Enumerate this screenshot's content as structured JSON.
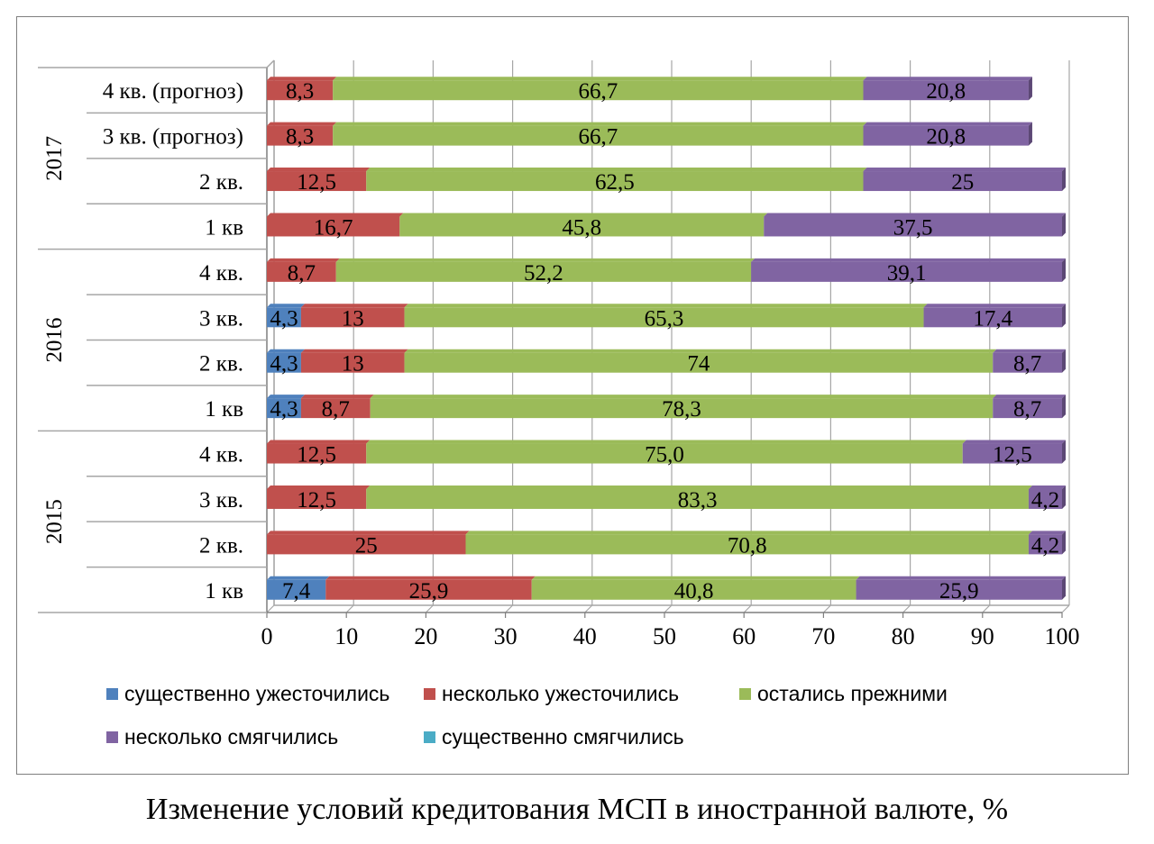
{
  "caption": "Изменение условий кредитования МСП в иностранной валюте, %",
  "colors": {
    "tightened_much": "#4f81bd",
    "tightened_some": "#c0504d",
    "unchanged": "#9bbb59",
    "eased_some": "#8064a2",
    "eased_much": "#4bacc6"
  },
  "chart_data": {
    "type": "bar",
    "orientation": "horizontal",
    "stacked": true,
    "xlim": [
      0,
      100
    ],
    "xticks": [
      0,
      10,
      20,
      30,
      40,
      50,
      60,
      70,
      80,
      90,
      100
    ],
    "grid": true,
    "legend_position": "bottom",
    "groups": [
      {
        "name": "2015",
        "categories": [
          "1 кв",
          "2 кв.",
          "3 кв.",
          "4 кв."
        ]
      },
      {
        "name": "2016",
        "categories": [
          "1 кв",
          "2 кв.",
          "3 кв.",
          "4 кв."
        ]
      },
      {
        "name": "2017",
        "categories": [
          "1 кв",
          "2 кв.",
          "3 кв. (прогноз)",
          "4 кв. (прогноз)"
        ]
      }
    ],
    "categories": [
      "1 кв",
      "2 кв.",
      "3 кв.",
      "4 кв.",
      "1 кв",
      "2 кв.",
      "3 кв.",
      "4 кв.",
      "1 кв",
      "2 кв.",
      "3 кв. (прогноз)",
      "4 кв. (прогноз)"
    ],
    "series": [
      {
        "name": "существенно ужесточились",
        "color": "#4f81bd",
        "values": [
          7.4,
          0,
          0,
          0,
          4.3,
          4.3,
          4.3,
          0,
          0,
          0,
          0,
          0
        ],
        "labels": [
          "7,4",
          "",
          "",
          "",
          "4,3",
          "4,3",
          "4,3",
          "",
          "",
          "",
          "",
          ""
        ]
      },
      {
        "name": "несколько ужесточились",
        "color": "#c0504d",
        "values": [
          25.9,
          25,
          12.5,
          12.5,
          8.7,
          13,
          13,
          8.7,
          16.7,
          12.5,
          8.3,
          8.3
        ],
        "labels": [
          "25,9",
          "25",
          "12,5",
          "12,5",
          "8,7",
          "13",
          "13",
          "8,7",
          "16,7",
          "12,5",
          "8,3",
          "8,3"
        ]
      },
      {
        "name": "остались прежними",
        "color": "#9bbb59",
        "values": [
          40.8,
          70.8,
          83.3,
          75.0,
          78.3,
          74,
          65.3,
          52.2,
          45.8,
          62.5,
          66.7,
          66.7
        ],
        "labels": [
          "40,8",
          "70,8",
          "83,3",
          "75,0",
          "78,3",
          "74",
          "65,3",
          "52,2",
          "45,8",
          "62,5",
          "66,7",
          "66,7"
        ]
      },
      {
        "name": "несколько смягчились",
        "color": "#8064a2",
        "values": [
          25.9,
          4.2,
          4.2,
          12.5,
          8.7,
          8.7,
          17.4,
          39.1,
          37.5,
          25,
          20.8,
          20.8
        ],
        "labels": [
          "25,9",
          "4,2",
          "4,2",
          "12,5",
          "8,7",
          "8,7",
          "17,4",
          "39,1",
          "37,5",
          "25",
          "20,8",
          "20,8"
        ]
      },
      {
        "name": "существенно смягчились",
        "color": "#4bacc6",
        "values": [
          0,
          0,
          0,
          0,
          0,
          0,
          0,
          0,
          0,
          0,
          0,
          0
        ],
        "labels": [
          "",
          "",
          "",
          "",
          "",
          "",
          "",
          "",
          "",
          "",
          "",
          ""
        ]
      }
    ]
  }
}
